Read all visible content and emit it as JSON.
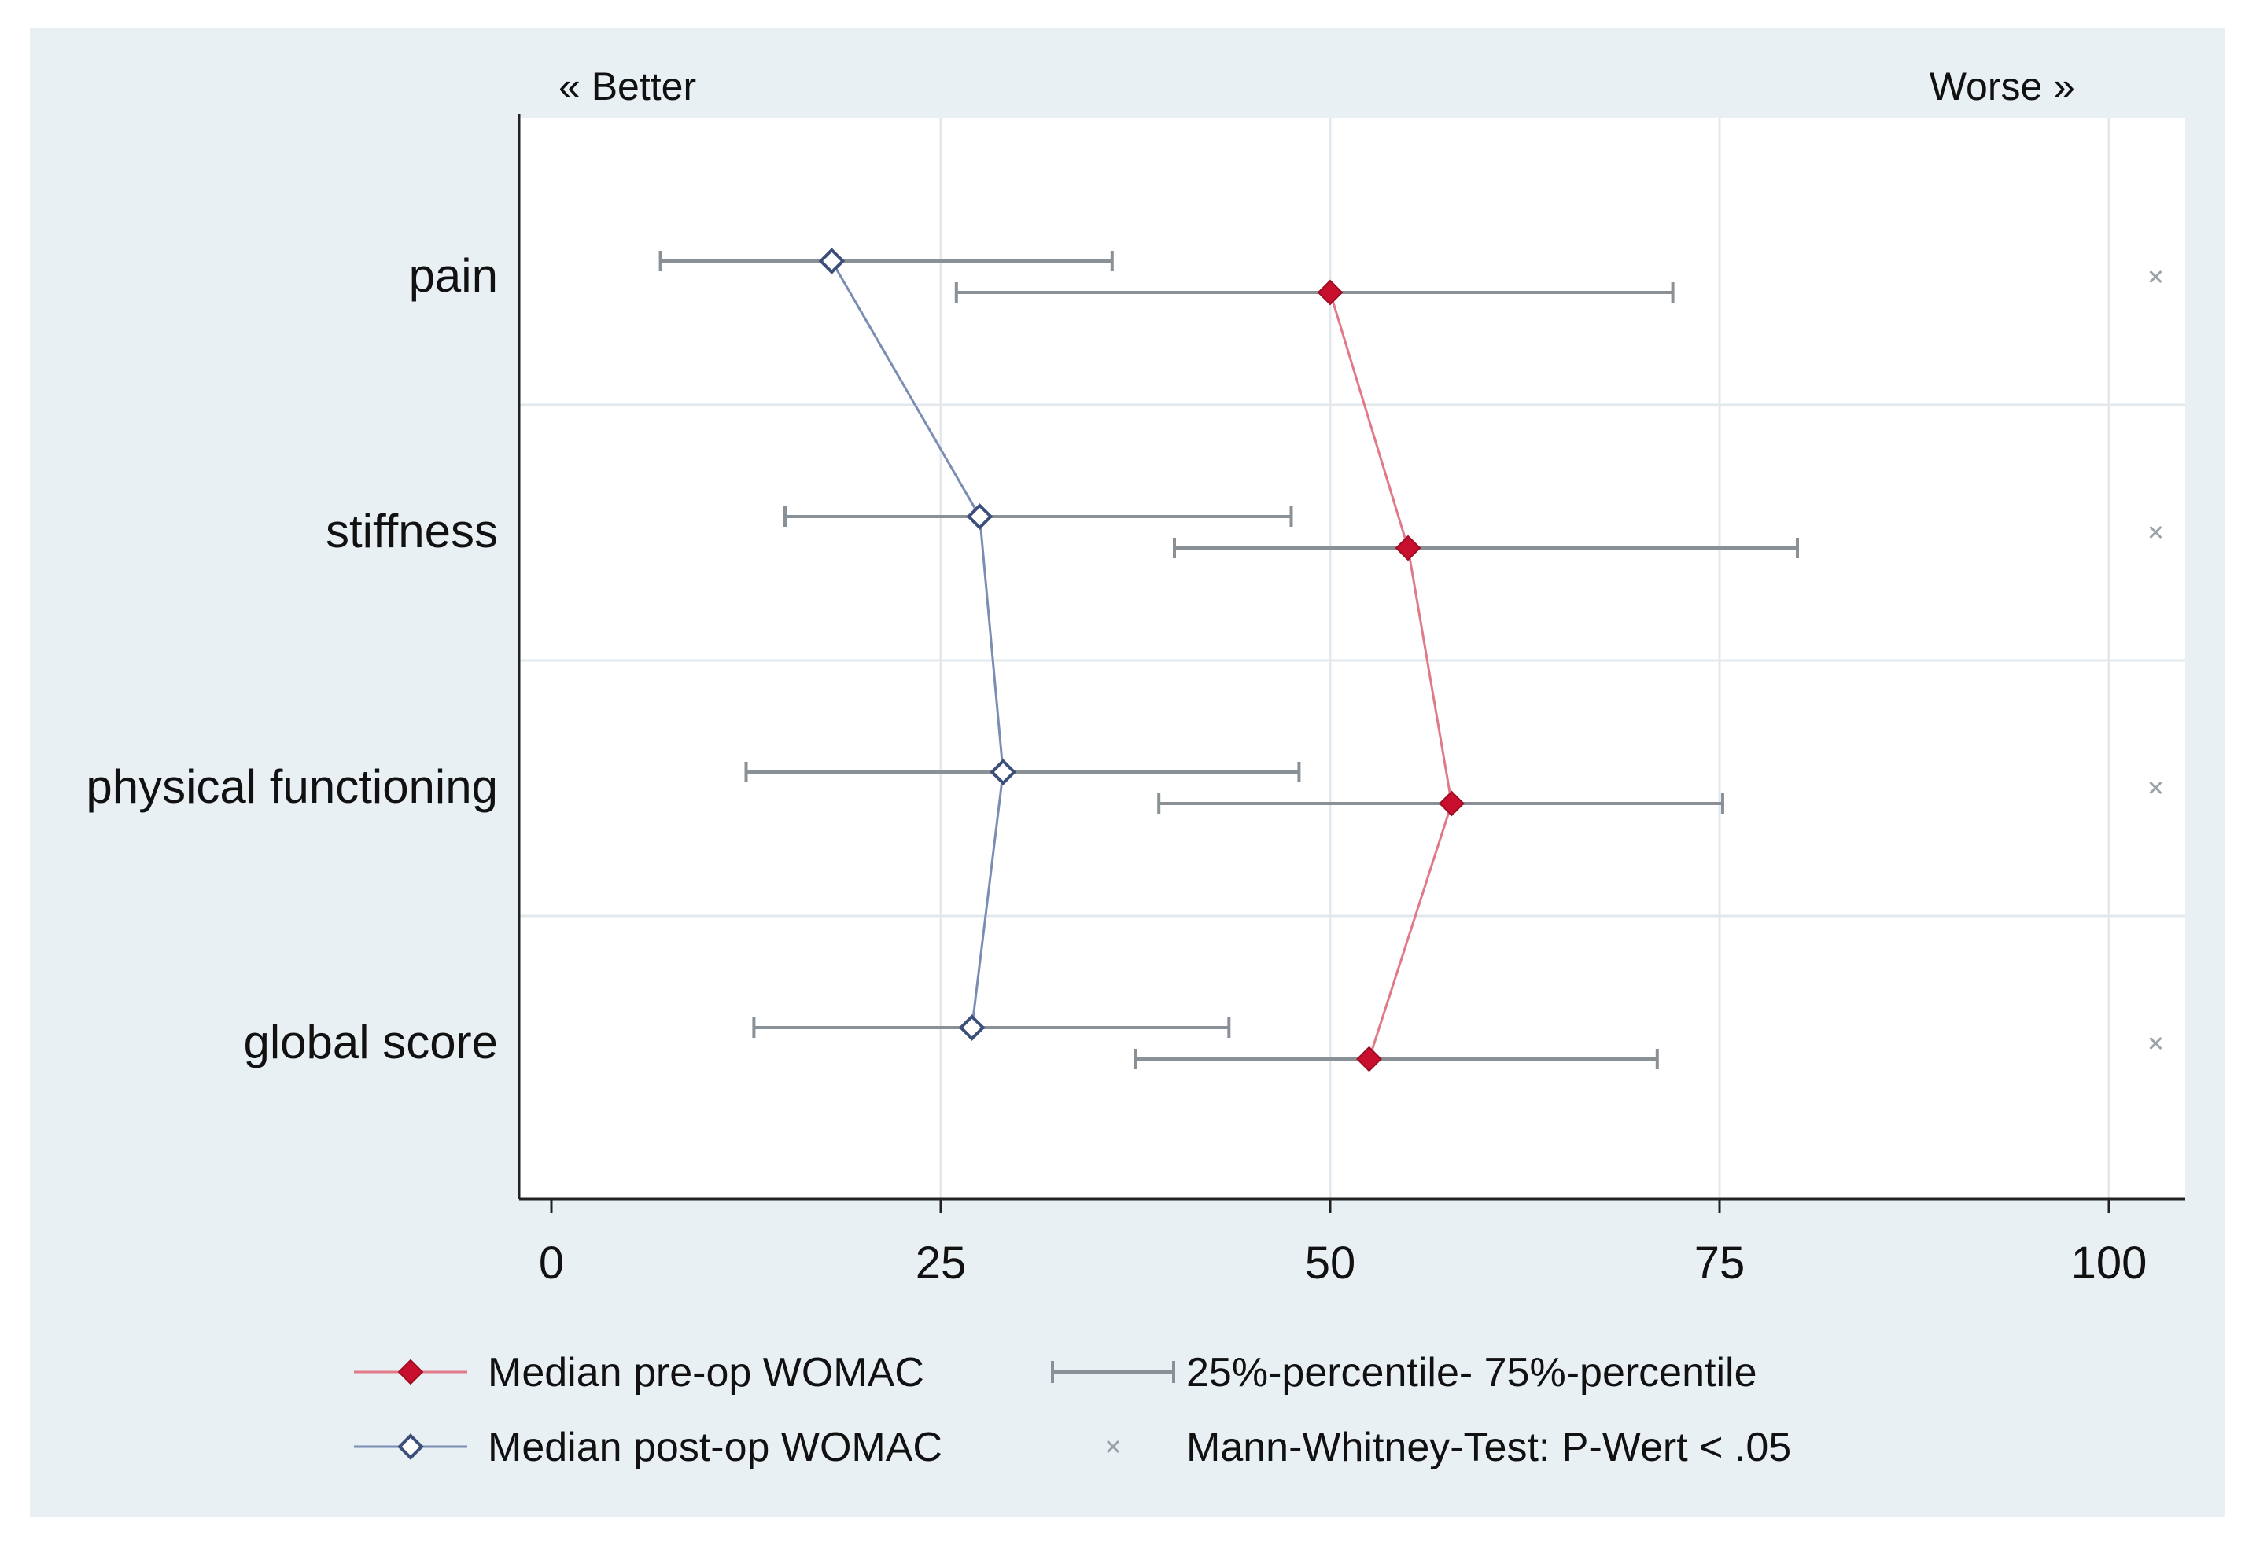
{
  "colors": {
    "panel_bg": "#e9f0f4",
    "plot_bg": "#ffffff",
    "grid": "#e3e8ec",
    "axis": "#222222",
    "pre_op": "#c8102e",
    "pre_op_line": "#e07a88",
    "post_op": "#7f9bd1",
    "post_op_line": "#7c8db3",
    "whisker": "#8a9196",
    "marker_sig": "#9aa3a8"
  },
  "chart_data": {
    "type": "scatter",
    "orientation": "horizontal",
    "direction_labels": {
      "left": "« Better",
      "right": "Worse »"
    },
    "categories": [
      "pain",
      "stiffness",
      "physical functioning",
      "global score"
    ],
    "xlim": [
      0,
      100
    ],
    "xticks": [
      0,
      25,
      50,
      75,
      100
    ],
    "grid": true,
    "series": [
      {
        "name": "Median pre-op WOMAC",
        "marker": "diamond-filled",
        "color": "#c8102e",
        "values": [
          50,
          55,
          57.8,
          52.5
        ],
        "iqr": [
          [
            26,
            72
          ],
          [
            40,
            80
          ],
          [
            39,
            75.2
          ],
          [
            37.5,
            71
          ]
        ]
      },
      {
        "name": "Median post-op WOMAC",
        "marker": "diamond-hollow",
        "color": "#7f9bd1",
        "values": [
          18,
          27.5,
          29,
          27
        ],
        "iqr": [
          [
            7,
            36
          ],
          [
            15,
            47.5
          ],
          [
            12.5,
            48
          ],
          [
            13,
            43.5
          ]
        ]
      }
    ],
    "significance_marker_x": 103,
    "significant": [
      true,
      true,
      true,
      true
    ],
    "legend": {
      "pre_op": "Median pre-op WOMAC",
      "post_op": "Median post-op WOMAC",
      "iqr": "25%-percentile- 75%-percentile",
      "significance": "Mann-Whitney-Test: P-Wert < .05"
    }
  }
}
